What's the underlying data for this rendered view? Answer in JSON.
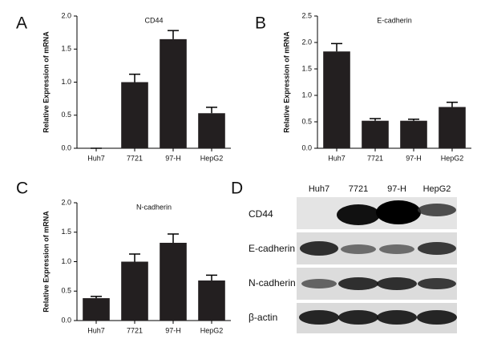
{
  "chart_data": [
    {
      "type": "bar",
      "panel": "A",
      "title": "CD44",
      "ylabel": "Relative Expression of mRNA",
      "categories": [
        "Huh7",
        "7721",
        "97-H",
        "HepG2"
      ],
      "values": [
        0,
        1.0,
        1.65,
        0.53
      ],
      "errors": [
        0,
        0.12,
        0.13,
        0.09
      ],
      "color": "#231f20",
      "ylim": [
        0,
        2
      ],
      "yticks": [
        {
          "value": 0,
          "label": "0.0"
        },
        0.5,
        {
          "value": 1,
          "label": "1.0"
        },
        1.5,
        {
          "value": 2,
          "label": "2.0"
        }
      ]
    },
    {
      "type": "bar",
      "panel": "B",
      "title": "E-cadherin",
      "ylabel": "Relative Expression of mRNA",
      "categories": [
        "Huh7",
        "7721",
        "97-H",
        "HepG2"
      ],
      "values": [
        1.83,
        0.52,
        0.52,
        0.78
      ],
      "errors": [
        0.15,
        0.04,
        0.03,
        0.09
      ],
      "color": "#231f20",
      "ylim": [
        0,
        2.5
      ],
      "yticks": [
        {
          "value": 0,
          "label": "0.0"
        },
        0.5,
        {
          "value": 1,
          "label": "1.0"
        },
        1.5,
        {
          "value": 2,
          "label": "2.0"
        },
        2.5
      ]
    },
    {
      "type": "bar",
      "panel": "C",
      "title": "N-cadherin",
      "ylabel": "Relative Expression of mRNA",
      "categories": [
        "Huh7",
        "7721",
        "97-H",
        "HepG2"
      ],
      "values": [
        0.38,
        1.0,
        1.32,
        0.68
      ],
      "errors": [
        0.03,
        0.13,
        0.15,
        0.09
      ],
      "color": "#231f20",
      "ylim": [
        0,
        2
      ],
      "yticks": [
        {
          "value": 0,
          "label": "0.0"
        },
        0.5,
        {
          "value": 1,
          "label": "1.0"
        },
        1.5,
        {
          "value": 2,
          "label": "2.0"
        }
      ]
    }
  ],
  "blot": {
    "panel": "D",
    "lanes": [
      "Huh7",
      "7721",
      "97-H",
      "HepG2"
    ],
    "proteins": [
      "CD44",
      "E-cadherin",
      "N-cadherin",
      "β-actin"
    ]
  }
}
